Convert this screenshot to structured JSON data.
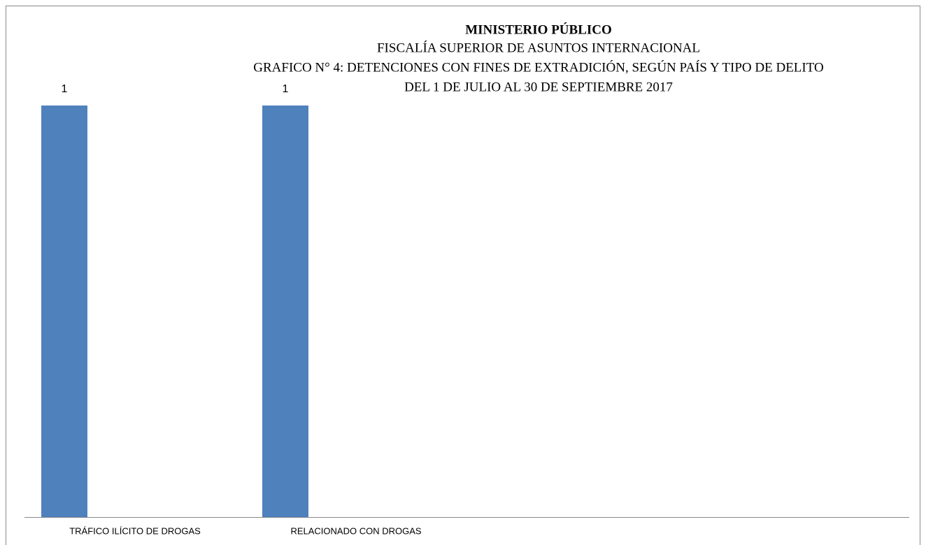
{
  "chart_data": {
    "type": "bar",
    "title": "MINISTERIO PÚBLICO",
    "subtitle": [
      "FISCALÍA SUPERIOR DE ASUNTOS INTERNACIONAL",
      "GRAFICO N° 4:  DETENCIONES CON FINES DE EXTRADICIÓN, SEGÚN PAÍS Y TIPO DE DELITO",
      "DEL 1 DE  JULIO AL 30 DE  SEPTIEMBRE 2017"
    ],
    "categories": [
      "TRÁFICO ILÍCITO DE DROGAS",
      "RELACIONADO CON DROGAS"
    ],
    "values": [
      1,
      1
    ],
    "color": "#4f81bd",
    "ylim": [
      0,
      1
    ]
  }
}
